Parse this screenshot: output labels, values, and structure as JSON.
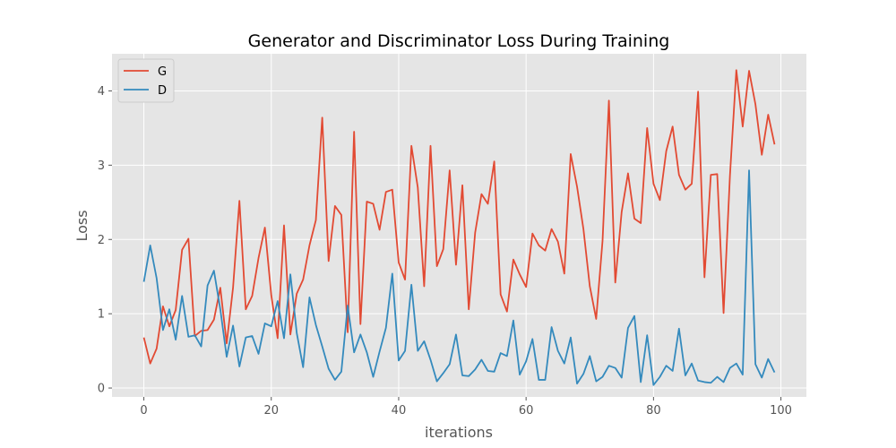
{
  "chart_data": {
    "type": "line",
    "title": "Generator and Discriminator Loss During Training",
    "xlabel": "iterations",
    "ylabel": "Loss",
    "xlim": [
      -5,
      104
    ],
    "ylim": [
      -0.12,
      4.5
    ],
    "xticks": [
      0,
      20,
      40,
      60,
      80,
      100
    ],
    "yticks": [
      0,
      1,
      2,
      3,
      4
    ],
    "grid": true,
    "legend_position": "top-left",
    "x": [
      0,
      1,
      2,
      3,
      4,
      5,
      6,
      7,
      8,
      9,
      10,
      11,
      12,
      13,
      14,
      15,
      16,
      17,
      18,
      19,
      20,
      21,
      22,
      23,
      24,
      25,
      26,
      27,
      28,
      29,
      30,
      31,
      32,
      33,
      34,
      35,
      36,
      37,
      38,
      39,
      40,
      41,
      42,
      43,
      44,
      45,
      46,
      47,
      48,
      49,
      50,
      51,
      52,
      53,
      54,
      55,
      56,
      57,
      58,
      59,
      60,
      61,
      62,
      63,
      64,
      65,
      66,
      67,
      68,
      69,
      70,
      71,
      72,
      73,
      74,
      75,
      76,
      77,
      78,
      79,
      80,
      81,
      82,
      83,
      84,
      85,
      86,
      87,
      88,
      89,
      90,
      91,
      92,
      93,
      94,
      95,
      96,
      97,
      98,
      99
    ],
    "series": [
      {
        "name": "G",
        "color": "#e24a33",
        "values": [
          0.68,
          0.33,
          0.53,
          1.1,
          0.83,
          1.05,
          1.86,
          2.01,
          0.7,
          0.77,
          0.78,
          0.92,
          1.35,
          0.6,
          1.35,
          2.52,
          1.06,
          1.24,
          1.75,
          2.16,
          1.25,
          0.67,
          2.19,
          0.72,
          1.27,
          1.46,
          1.92,
          2.26,
          3.64,
          1.71,
          2.45,
          2.33,
          0.75,
          3.45,
          0.86,
          2.51,
          2.48,
          2.13,
          2.64,
          2.67,
          1.69,
          1.46,
          3.26,
          2.7,
          1.37,
          3.26,
          1.64,
          1.87,
          2.93,
          1.66,
          2.73,
          1.06,
          2.09,
          2.61,
          2.48,
          3.05,
          1.26,
          1.03,
          1.73,
          1.53,
          1.36,
          2.08,
          1.92,
          1.85,
          2.14,
          1.97,
          1.54,
          3.15,
          2.71,
          2.14,
          1.37,
          0.93,
          1.98,
          3.87,
          1.42,
          2.37,
          2.89,
          2.28,
          2.22,
          3.5,
          2.75,
          2.53,
          3.19,
          3.52,
          2.87,
          2.67,
          2.75,
          3.99,
          1.49,
          2.87,
          2.88,
          1.01,
          2.86,
          4.28,
          3.52,
          4.27,
          3.82,
          3.14,
          3.68,
          3.28
        ]
      },
      {
        "name": "D",
        "color": "#348abd",
        "values": [
          1.43,
          1.92,
          1.48,
          0.78,
          1.06,
          0.65,
          1.24,
          0.69,
          0.71,
          0.56,
          1.38,
          1.58,
          1.06,
          0.42,
          0.84,
          0.29,
          0.68,
          0.7,
          0.46,
          0.87,
          0.83,
          1.17,
          0.67,
          1.53,
          0.74,
          0.28,
          1.22,
          0.85,
          0.56,
          0.26,
          0.11,
          0.22,
          1.11,
          0.48,
          0.72,
          0.48,
          0.15,
          0.49,
          0.81,
          1.54,
          0.37,
          0.5,
          1.39,
          0.5,
          0.63,
          0.38,
          0.09,
          0.2,
          0.32,
          0.72,
          0.17,
          0.16,
          0.25,
          0.38,
          0.23,
          0.22,
          0.47,
          0.43,
          0.91,
          0.18,
          0.36,
          0.66,
          0.11,
          0.11,
          0.82,
          0.5,
          0.33,
          0.68,
          0.06,
          0.19,
          0.43,
          0.09,
          0.15,
          0.3,
          0.27,
          0.14,
          0.81,
          0.97,
          0.08,
          0.71,
          0.04,
          0.15,
          0.3,
          0.23,
          0.8,
          0.17,
          0.33,
          0.1,
          0.08,
          0.07,
          0.15,
          0.08,
          0.27,
          0.33,
          0.18,
          2.93,
          0.32,
          0.14,
          0.39,
          0.21
        ]
      }
    ]
  }
}
